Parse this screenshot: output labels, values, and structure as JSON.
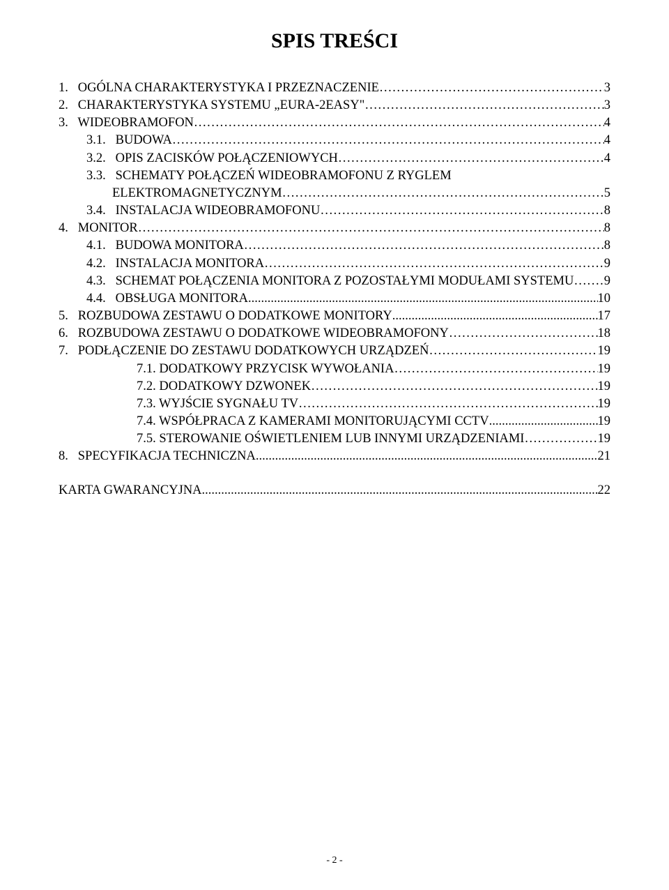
{
  "title": "SPIS TREŚCI",
  "lines": [
    {
      "label": "1.   OGÓLNA CHARAKTERYSTYKA I PRZEZNACZENIE",
      "page": "3",
      "indent": 0,
      "leader": "ell"
    },
    {
      "label": "2.   CHARAKTERYSTYKA SYSTEMU „EURA-2EASY\"",
      "page": "3",
      "indent": 0,
      "leader": "ell"
    },
    {
      "label": "3.   WIDEOBRAMOFON",
      "page": "4",
      "indent": 0,
      "leader": "ell"
    },
    {
      "label": "3.1.   BUDOWA",
      "page": "4",
      "indent": 1,
      "leader": "ell"
    },
    {
      "label": "3.2.   OPIS ZACISKÓW POŁĄCZENIOWYCH",
      "page": "4",
      "indent": 1,
      "leader": "ell"
    },
    {
      "label": "3.3.   SCHEMATY POŁĄCZEŃ WIDEOBRAMOFONU Z RYGLEM",
      "page": "",
      "indent": 1,
      "leader": "none"
    },
    {
      "label": "        ELEKTROMAGNETYCZNYM",
      "page": "5",
      "indent": 2,
      "leader": "ell"
    },
    {
      "label": "3.4.   INSTALACJA WIDEOBRAMOFONU",
      "page": "8",
      "indent": 1,
      "leader": "ell"
    },
    {
      "label": "4.   MONITOR",
      "page": "8",
      "indent": 0,
      "leader": "ell"
    },
    {
      "label": "4.1.   BUDOWA MONITORA",
      "page": "8",
      "indent": 1,
      "leader": "ell"
    },
    {
      "label": "4.2.   INSTALACJA MONITORA",
      "page": "9",
      "indent": 1,
      "leader": "ell"
    },
    {
      "label": "4.3.   SCHEMAT POŁĄCZENIA MONITORA Z POZOSTAŁYMI MODUŁAMI SYSTEMU",
      "page": "9",
      "indent": 1,
      "leader": "ell"
    },
    {
      "label": "4.4.   OBSŁUGA MONITORA",
      "page": "10",
      "indent": 1,
      "leader": "dots"
    },
    {
      "label": "5.   ROZBUDOWA ZESTAWU O DODATKOWE MONITORY",
      "page": "17",
      "indent": 0,
      "leader": "dots"
    },
    {
      "label": "6.   ROZBUDOWA ZESTAWU O DODATKOWE WIDEOBRAMOFONY",
      "page": "18",
      "indent": 0,
      "leader": "ell"
    },
    {
      "label": "7.   PODŁĄCZENIE DO ZESTAWU DODATKOWYCH URZĄDZEŃ",
      "page": "19",
      "indent": 0,
      "leader": "ell"
    },
    {
      "label": "7.1. DODATKOWY PRZYCISK WYWOŁANIA",
      "page": "19",
      "indent": 3,
      "leader": "ell"
    },
    {
      "label": "7.2. DODATKOWY DZWONEK",
      "page": "19",
      "indent": 3,
      "leader": "ell"
    },
    {
      "label": "7.3. WYJŚCIE SYGNAŁU TV",
      "page": "19",
      "indent": 3,
      "leader": "ell"
    },
    {
      "label": "7.4. WSPÓŁPRACA Z KAMERAMI MONITORUJĄCYMI CCTV",
      "page": "19",
      "indent": 3,
      "leader": "dots"
    },
    {
      "label": "7.5. STEROWANIE OŚWIETLENIEM LUB INNYMI URZĄDZENIAMI",
      "page": "19",
      "indent": 3,
      "leader": "ell"
    },
    {
      "label": "8.   SPECYFIKACJA TECHNICZNA",
      "page": "21",
      "indent": 0,
      "leader": "dots"
    }
  ],
  "karta": {
    "label": "KARTA GWARANCYJNA",
    "page": "22",
    "leader": "dots"
  },
  "footer": "- 2 -"
}
